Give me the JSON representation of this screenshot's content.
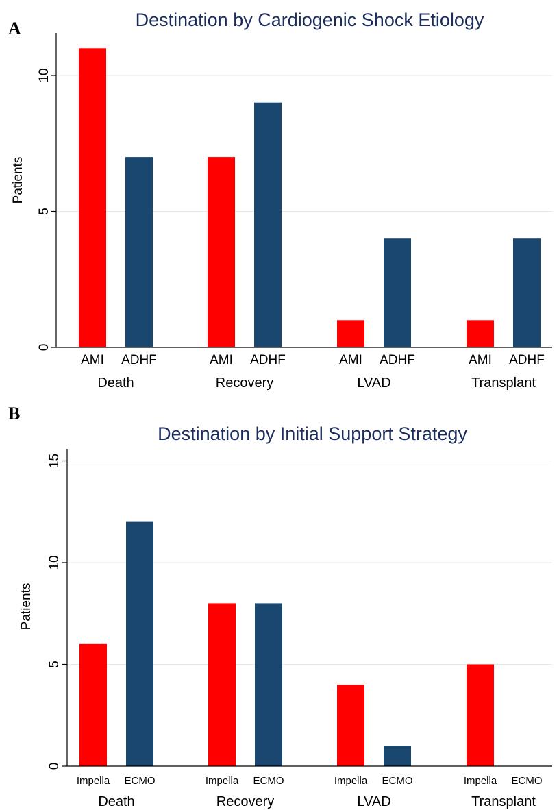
{
  "chart_data": [
    {
      "type": "bar",
      "panel": "A",
      "title": "Destination by Cardiogenic Shock Etiology",
      "ylabel": "Patients",
      "xlabel": "",
      "ylim": [
        0,
        12
      ],
      "yticks": [
        0,
        5,
        10
      ],
      "grid": true,
      "groups": [
        "Death",
        "Recovery",
        "LVAD",
        "Transplant"
      ],
      "subcategories": [
        "AMI",
        "ADHF"
      ],
      "series": [
        {
          "values": [
            11,
            7,
            1,
            1
          ],
          "color": "#ff0000"
        },
        {
          "values": [
            7,
            9,
            4,
            4
          ],
          "color": "#1a476f"
        }
      ]
    },
    {
      "type": "bar",
      "panel": "B",
      "title": "Destination by Initial Support Strategy",
      "ylabel": "Patients",
      "xlabel": "",
      "ylim": [
        0,
        16
      ],
      "yticks": [
        0,
        5,
        10,
        15
      ],
      "grid": true,
      "groups": [
        "Death",
        "Recovery",
        "LVAD",
        "Transplant"
      ],
      "subcategories": [
        "Impella",
        "ECMO"
      ],
      "series": [
        {
          "values": [
            6,
            8,
            4,
            5
          ],
          "color": "#ff0000"
        },
        {
          "values": [
            12,
            8,
            1,
            0
          ],
          "color": "#1a476f"
        }
      ]
    }
  ]
}
